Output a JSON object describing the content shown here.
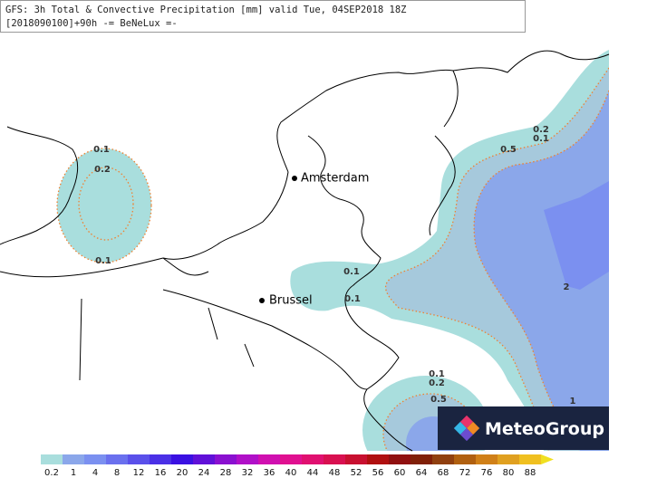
{
  "header": {
    "line1": "GFS: 3h Total & Convective Precipitation [mm] valid Tue, 04SEP2018 18Z",
    "line2": "[2018090100]+90h -= BeNeLux =-"
  },
  "cities": [
    "Amsterdam",
    "Brussel"
  ],
  "contour_labels": [
    "0.1",
    "0.2",
    "0.1",
    "0.2",
    "0.1",
    "0.5",
    "2",
    "1",
    "0.1",
    "0.1",
    "0.1",
    "0.2",
    "0.5"
  ],
  "legend": {
    "labels": [
      "0.2",
      "1",
      "4",
      "8",
      "12",
      "16",
      "20",
      "24",
      "28",
      "32",
      "36",
      "40",
      "44",
      "48",
      "52",
      "56",
      "60",
      "64",
      "68",
      "72",
      "76",
      "80",
      "88"
    ]
  },
  "logo": {
    "text": "MeteoGroup"
  }
}
